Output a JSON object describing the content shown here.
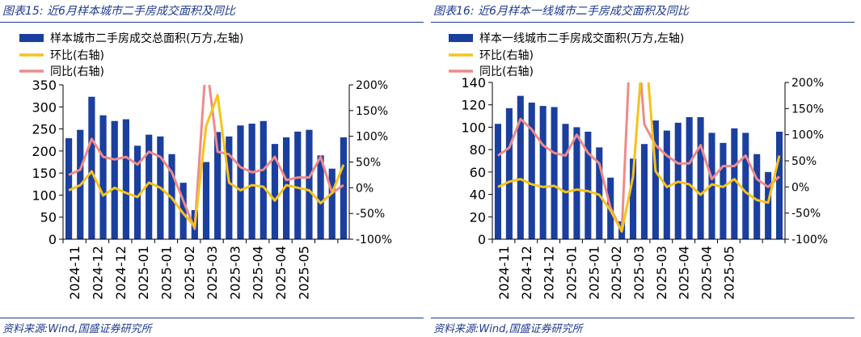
{
  "chart_data": [
    {
      "type": "bar",
      "title": "图表15: 近6月样本城市二手房成交面积及同比",
      "source": "资料来源:Wind,国盛证券研究所",
      "colors": {
        "bar": "#1a3f9e",
        "mom": "#f6c31b",
        "yoy": "#ef8a8a",
        "title": "#1f3a8f"
      },
      "legend": [
        "样本城市二手房成交总面积(万方,左轴)",
        "环比(右轴)",
        "同比(右轴)"
      ],
      "legend_placement": "top-left",
      "y_left": {
        "min": 0,
        "max": 350,
        "ticks": [
          0,
          50,
          100,
          150,
          200,
          250,
          300,
          350
        ]
      },
      "y_right": {
        "min": -100,
        "max": 200,
        "ticks": [
          "-100%",
          "-50%",
          "0%",
          "50%",
          "100%",
          "150%",
          "200%"
        ]
      },
      "x_tick_labels": [
        "2024-11",
        "2024-12",
        "2024-12",
        "2025-01",
        "2025-01",
        "2025-02",
        "2025-03",
        "2025-03",
        "2025-04",
        "2025-04",
        "2025-05"
      ],
      "bars": [
        229,
        248,
        323,
        281,
        268,
        272,
        212,
        237,
        233,
        193,
        128,
        66,
        175,
        243,
        233,
        258,
        262,
        268,
        216,
        231,
        244,
        248,
        190,
        160,
        231
      ],
      "mom": [
        -5,
        5,
        32,
        -15,
        0,
        -10,
        -18,
        10,
        0,
        -20,
        -50,
        -75,
        120,
        180,
        10,
        -5,
        5,
        2,
        -25,
        5,
        0,
        -5,
        -30,
        -10,
        45
      ],
      "yoy": [
        25,
        35,
        95,
        60,
        55,
        60,
        45,
        70,
        60,
        30,
        -25,
        -80,
        250,
        70,
        65,
        40,
        30,
        35,
        60,
        15,
        20,
        20,
        60,
        -10,
        5
      ],
      "grid": false
    },
    {
      "type": "bar",
      "title": "图表16: 近6月样本一线城市二手房成交面积及同比",
      "source": "资料来源:Wind,国盛证券研究所",
      "colors": {
        "bar": "#1a3f9e",
        "mom": "#f6c31b",
        "yoy": "#ef8a8a",
        "title": "#1f3a8f"
      },
      "legend": [
        "样本一线城市二手房成交面积(万方,左轴)",
        "环比(右轴)",
        "同比(右轴)"
      ],
      "legend_placement": "top-left",
      "y_left": {
        "min": 0,
        "max": 140,
        "ticks": [
          0,
          20,
          40,
          60,
          80,
          100,
          120,
          140
        ]
      },
      "y_right": {
        "min": -100,
        "max": 200,
        "ticks": [
          "-100%",
          "-50%",
          "0%",
          "50%",
          "100%",
          "150%",
          "200%"
        ]
      },
      "x_tick_labels": [
        "2024-11",
        "2024-12",
        "2024-12",
        "2025-01",
        "2025-01",
        "2025-02",
        "2025-03",
        "2025-03",
        "2025-04",
        "2025-04",
        "2025-05"
      ],
      "bars": [
        103,
        117,
        128,
        122,
        119,
        118,
        103,
        100,
        96,
        82,
        55,
        16,
        72,
        85,
        106,
        97,
        104,
        109,
        109,
        95,
        86,
        99,
        95,
        76,
        60,
        96
      ],
      "mom": [
        0,
        10,
        15,
        5,
        0,
        2,
        -10,
        -5,
        -8,
        -15,
        -45,
        -85,
        20,
        300,
        30,
        0,
        10,
        5,
        -15,
        5,
        0,
        15,
        -10,
        -25,
        -30,
        60
      ],
      "yoy": [
        60,
        75,
        130,
        110,
        80,
        65,
        60,
        100,
        65,
        45,
        -40,
        -85,
        400,
        120,
        80,
        60,
        45,
        45,
        80,
        15,
        40,
        40,
        60,
        15,
        0,
        20
      ],
      "grid": false
    }
  ]
}
